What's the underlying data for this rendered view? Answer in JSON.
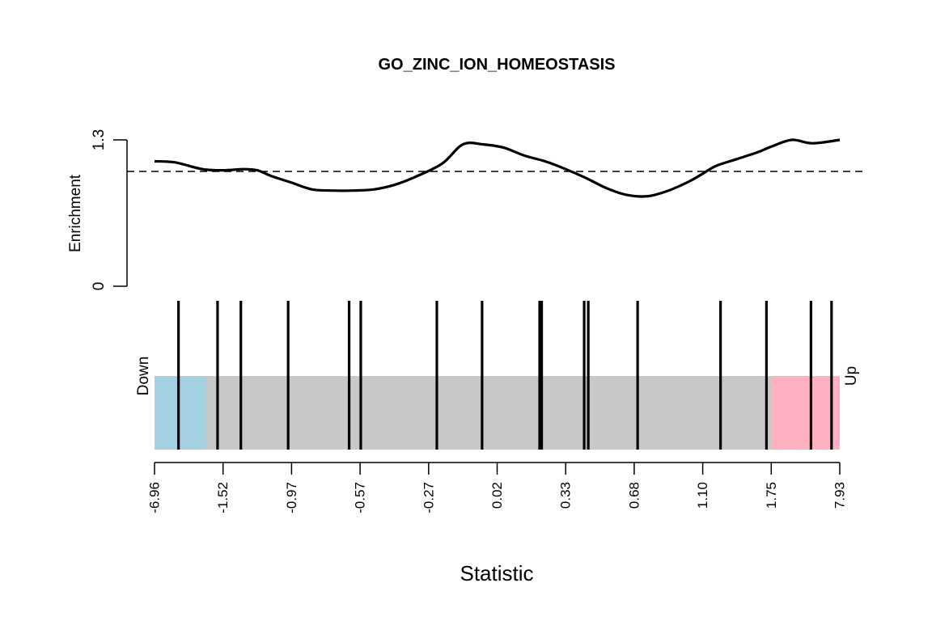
{
  "chart_data": {
    "type": "line",
    "title": "GO_ZINC_ION_HOMEOSTASIS",
    "enrichment": {
      "ylabel": "Enrichment",
      "ylim": [
        0,
        1.3
      ],
      "y_tick_labels": [
        "0",
        "1.3"
      ],
      "reference_line": 1.02,
      "curve": {
        "x": [
          0.0,
          0.03,
          0.07,
          0.1,
          0.13,
          0.15,
          0.17,
          0.2,
          0.23,
          0.26,
          0.29,
          0.32,
          0.35,
          0.38,
          0.42,
          0.45,
          0.48,
          0.51,
          0.54,
          0.57,
          0.6,
          0.63,
          0.66,
          0.69,
          0.72,
          0.75,
          0.78,
          0.8,
          0.82,
          0.85,
          0.88,
          0.9,
          0.93,
          0.96,
          1.0
        ],
        "y": [
          1.11,
          1.1,
          1.04,
          1.03,
          1.04,
          1.03,
          0.98,
          0.92,
          0.86,
          0.85,
          0.85,
          0.86,
          0.9,
          0.97,
          1.09,
          1.26,
          1.26,
          1.23,
          1.16,
          1.11,
          1.04,
          0.96,
          0.87,
          0.81,
          0.8,
          0.85,
          0.93,
          1.0,
          1.07,
          1.13,
          1.19,
          1.24,
          1.3,
          1.27,
          1.3
        ]
      }
    },
    "barcode": {
      "left_label": "Down",
      "right_label": "Up",
      "down_fraction": 0.075,
      "up_fraction": 0.1,
      "colors": {
        "down": "#a3d1e2",
        "middle": "#c8c8c8",
        "up": "#ffb0c1",
        "line": "#000000"
      },
      "positions": [
        0.035,
        0.092,
        0.126,
        0.195,
        0.284,
        0.301,
        0.412,
        0.478,
        0.562,
        0.565,
        0.627,
        0.633,
        0.705,
        0.826,
        0.893,
        0.958,
        0.988
      ]
    },
    "xlabel": "Statistic",
    "x_tick_labels": [
      "-6.96",
      "-1.52",
      "-0.97",
      "-0.57",
      "-0.27",
      "0.02",
      "0.33",
      "0.68",
      "1.10",
      "1.75",
      "7.93"
    ]
  }
}
